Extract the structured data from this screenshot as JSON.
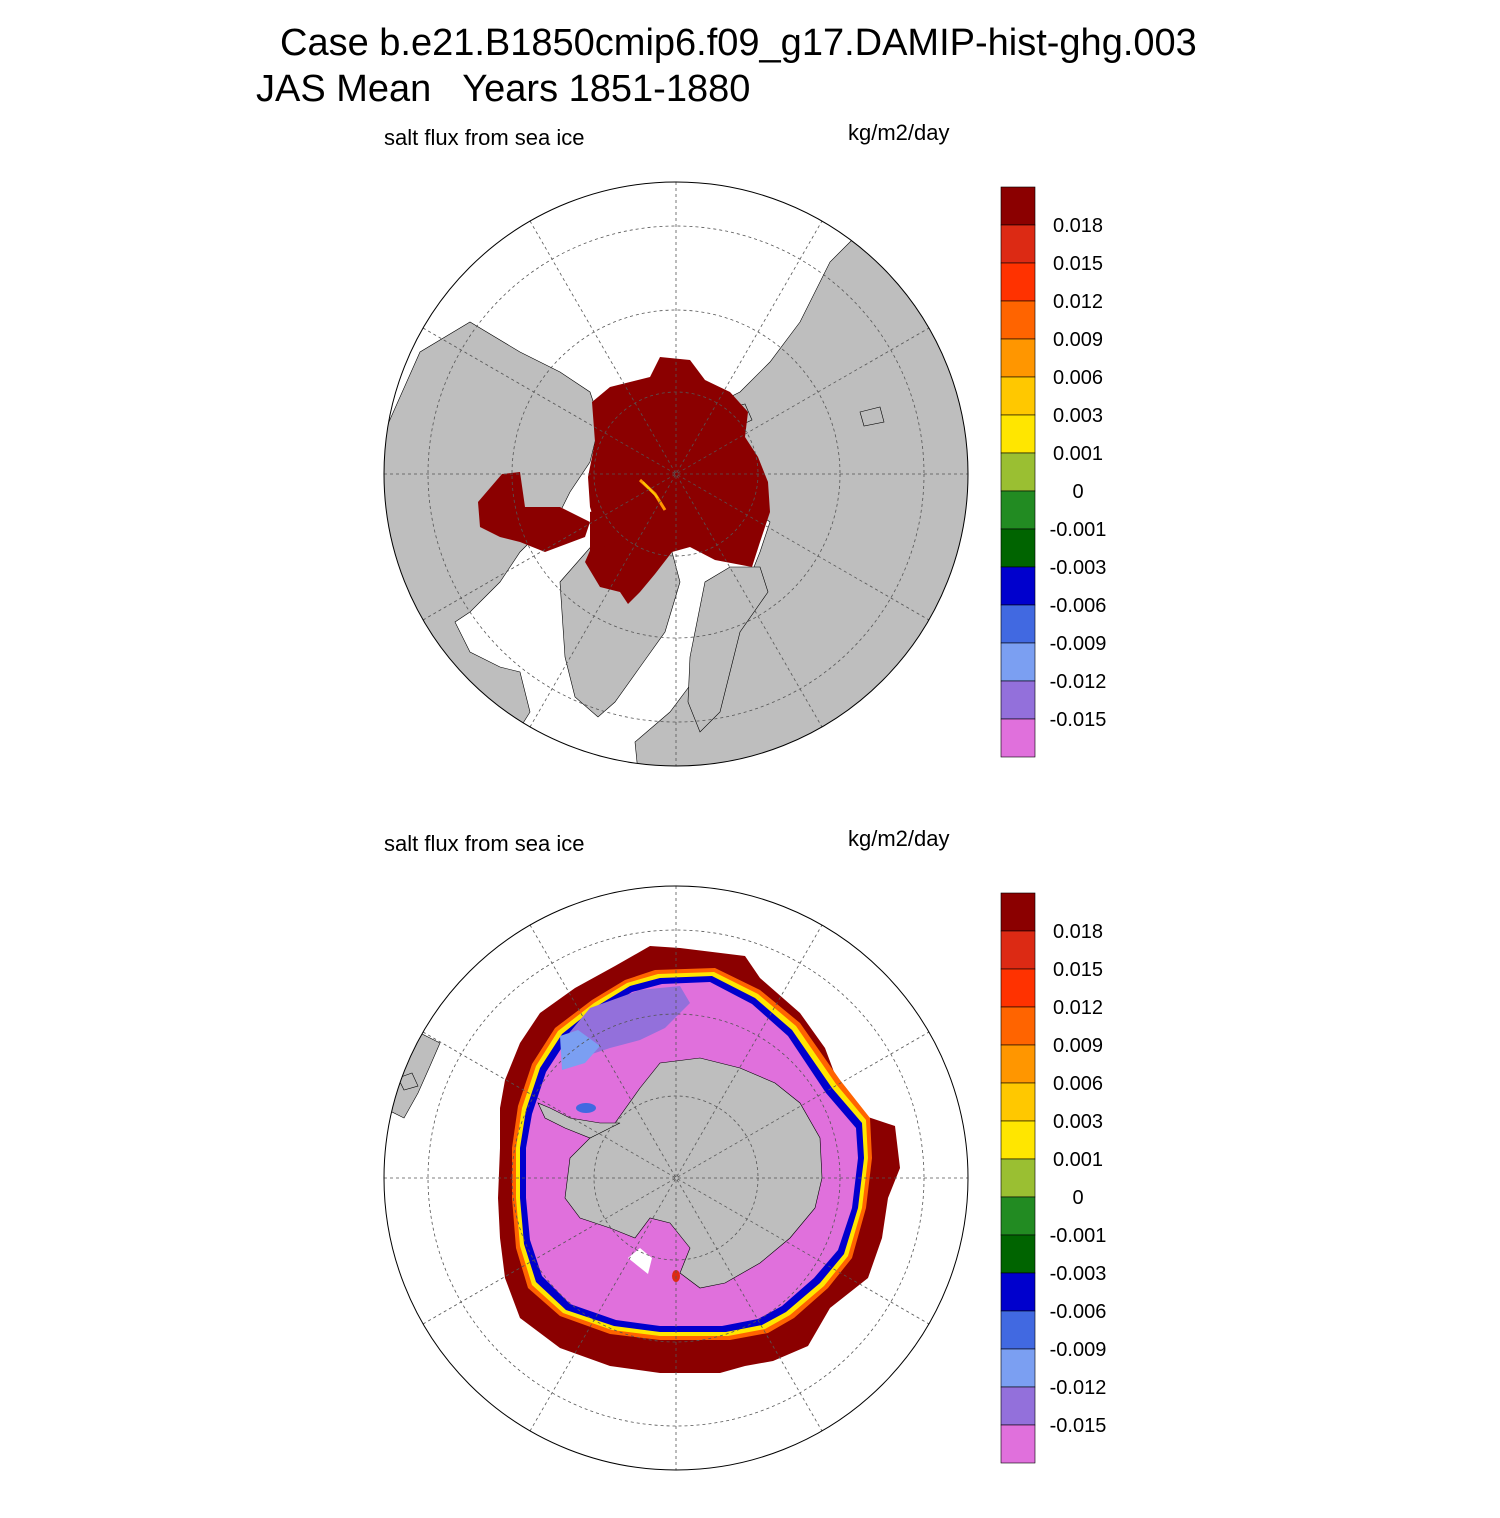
{
  "title": {
    "line1": "Case b.e21.B1850cmip6.f09_g17.DAMIP-hist-ghg.003",
    "line2": "JAS Mean   Years 1851-1880"
  },
  "panels": [
    {
      "id": "north",
      "hemisphere": "north",
      "variable": "salt flux from sea ice",
      "units": "kg/m2/day"
    },
    {
      "id": "south",
      "hemisphere": "south",
      "variable": "salt flux from sea ice",
      "units": "kg/m2/day"
    }
  ],
  "colorbar": {
    "levels": [
      "0.018",
      "0.015",
      "0.012",
      "0.009",
      "0.006",
      "0.003",
      "0.001",
      "0",
      "-0.001",
      "-0.003",
      "-0.006",
      "-0.009",
      "-0.012",
      "-0.015"
    ],
    "colors": [
      "#8b0000",
      "#dc2a14",
      "#ff3200",
      "#ff6400",
      "#ff9600",
      "#ffc800",
      "#ffe600",
      "#9abf32",
      "#228b22",
      "#006400",
      "#0000cd",
      "#4169e1",
      "#7b9ff2",
      "#9370db",
      "#e070dc"
    ]
  },
  "map_colors": {
    "land": "#bebebe",
    "ocean": "#ffffff",
    "coast": "#000000",
    "grid": "#555555"
  }
}
